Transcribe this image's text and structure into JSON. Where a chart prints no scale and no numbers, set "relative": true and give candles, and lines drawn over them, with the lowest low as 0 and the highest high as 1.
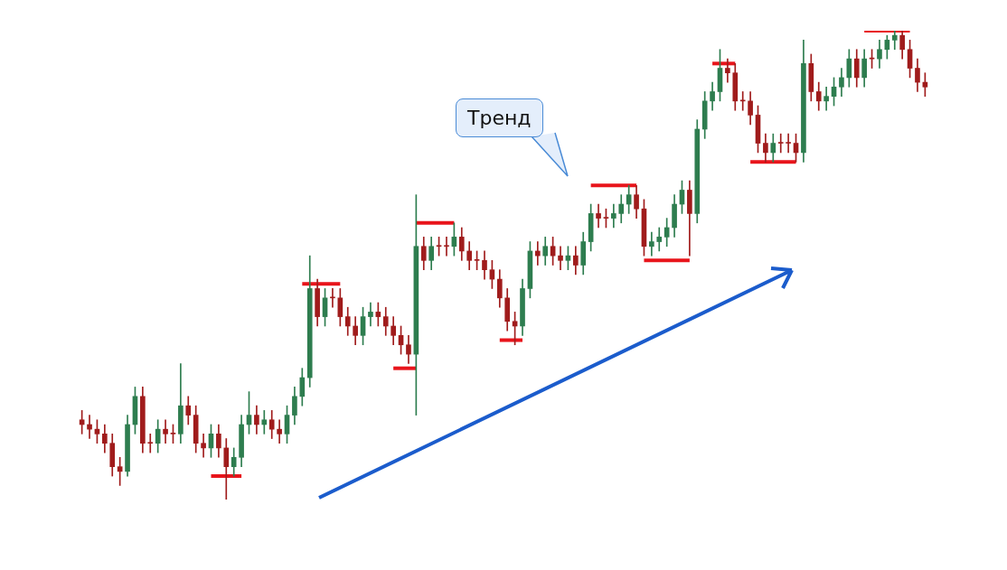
{
  "chart_data": {
    "type": "candlestick",
    "relative": true,
    "annotations": [
      "Тренд"
    ],
    "categories": [
      null,
      null,
      null,
      null,
      null,
      null,
      null,
      null,
      null,
      null,
      null,
      null,
      null,
      null,
      null,
      null,
      null,
      null,
      null,
      null,
      null,
      null,
      null,
      null,
      null,
      null,
      null,
      null,
      null,
      null,
      null,
      null,
      null,
      null,
      null,
      null,
      null,
      null,
      null,
      null,
      null,
      null,
      null,
      null,
      null,
      null,
      null,
      null,
      null,
      null,
      null,
      null,
      null,
      null,
      null,
      null,
      null,
      null,
      null,
      null,
      null,
      null,
      null,
      null,
      null,
      null,
      null,
      null,
      null,
      null,
      null,
      null,
      null,
      null,
      null,
      null,
      null,
      null,
      null,
      null,
      null,
      null,
      null,
      null,
      null,
      null,
      null,
      null,
      null,
      null,
      null,
      null,
      null,
      null,
      null,
      null,
      null,
      null,
      null,
      null,
      null,
      null,
      null,
      null,
      null,
      null,
      null,
      null,
      null,
      null,
      null,
      null
    ],
    "series": [
      {
        "ohlc": [
          [
            0.17,
            0.19,
            0.14,
            0.16
          ],
          [
            0.16,
            0.18,
            0.13,
            0.15
          ],
          [
            0.15,
            0.17,
            0.12,
            0.14
          ],
          [
            0.14,
            0.16,
            0.1,
            0.12
          ],
          [
            0.12,
            0.14,
            0.05,
            0.07
          ],
          [
            0.07,
            0.09,
            0.03,
            0.06
          ],
          [
            0.06,
            0.18,
            0.05,
            0.16
          ],
          [
            0.16,
            0.24,
            0.14,
            0.22
          ],
          [
            0.22,
            0.24,
            0.1,
            0.12
          ],
          [
            0.12,
            0.14,
            0.1,
            0.12
          ],
          [
            0.12,
            0.17,
            0.1,
            0.15
          ],
          [
            0.15,
            0.17,
            0.12,
            0.14
          ],
          [
            0.14,
            0.16,
            0.12,
            0.14
          ],
          [
            0.14,
            0.29,
            0.12,
            0.2
          ],
          [
            0.2,
            0.22,
            0.16,
            0.18
          ],
          [
            0.18,
            0.2,
            0.1,
            0.12
          ],
          [
            0.12,
            0.14,
            0.09,
            0.11
          ],
          [
            0.11,
            0.16,
            0.09,
            0.14
          ],
          [
            0.14,
            0.16,
            0.09,
            0.11
          ],
          [
            0.11,
            0.13,
            0,
            0.07
          ],
          [
            0.07,
            0.11,
            0.05,
            0.09
          ],
          [
            0.09,
            0.18,
            0.07,
            0.16
          ],
          [
            0.16,
            0.23,
            0.14,
            0.18
          ],
          [
            0.18,
            0.2,
            0.14,
            0.16
          ],
          [
            0.16,
            0.19,
            0.14,
            0.17
          ],
          [
            0.17,
            0.19,
            0.13,
            0.15
          ],
          [
            0.15,
            0.17,
            0.12,
            0.14
          ],
          [
            0.14,
            0.2,
            0.12,
            0.18
          ],
          [
            0.18,
            0.24,
            0.16,
            0.22
          ],
          [
            0.22,
            0.28,
            0.2,
            0.26
          ],
          [
            0.26,
            0.52,
            0.24,
            0.45
          ],
          [
            0.45,
            0.47,
            0.37,
            0.39
          ],
          [
            0.39,
            0.45,
            0.37,
            0.43
          ],
          [
            0.43,
            0.45,
            0.41,
            0.43
          ],
          [
            0.43,
            0.45,
            0.37,
            0.39
          ],
          [
            0.39,
            0.41,
            0.35,
            0.37
          ],
          [
            0.37,
            0.39,
            0.33,
            0.35
          ],
          [
            0.35,
            0.41,
            0.33,
            0.39
          ],
          [
            0.39,
            0.42,
            0.37,
            0.4
          ],
          [
            0.4,
            0.42,
            0.37,
            0.39
          ],
          [
            0.39,
            0.41,
            0.35,
            0.37
          ],
          [
            0.37,
            0.39,
            0.33,
            0.35
          ],
          [
            0.35,
            0.37,
            0.31,
            0.33
          ],
          [
            0.33,
            0.35,
            0.29,
            0.31
          ],
          [
            0.31,
            0.65,
            0.18,
            0.54
          ],
          [
            0.54,
            0.56,
            0.49,
            0.51
          ],
          [
            0.51,
            0.56,
            0.49,
            0.54
          ],
          [
            0.54,
            0.56,
            0.52,
            0.54
          ],
          [
            0.54,
            0.56,
            0.52,
            0.54
          ],
          [
            0.54,
            0.59,
            0.52,
            0.56
          ],
          [
            0.56,
            0.58,
            0.51,
            0.53
          ],
          [
            0.53,
            0.55,
            0.49,
            0.51
          ],
          [
            0.51,
            0.53,
            0.49,
            0.51
          ],
          [
            0.51,
            0.53,
            0.47,
            0.49
          ],
          [
            0.49,
            0.51,
            0.45,
            0.47
          ],
          [
            0.47,
            0.49,
            0.41,
            0.43
          ],
          [
            0.43,
            0.45,
            0.36,
            0.38
          ],
          [
            0.38,
            0.4,
            0.33,
            0.37
          ],
          [
            0.37,
            0.47,
            0.35,
            0.45
          ],
          [
            0.45,
            0.55,
            0.43,
            0.53
          ],
          [
            0.53,
            0.55,
            0.5,
            0.52
          ],
          [
            0.52,
            0.56,
            0.5,
            0.54
          ],
          [
            0.54,
            0.56,
            0.5,
            0.52
          ],
          [
            0.52,
            0.54,
            0.49,
            0.51
          ],
          [
            0.51,
            0.54,
            0.49,
            0.52
          ],
          [
            0.52,
            0.54,
            0.48,
            0.5
          ],
          [
            0.5,
            0.57,
            0.48,
            0.55
          ],
          [
            0.55,
            0.63,
            0.53,
            0.61
          ],
          [
            0.61,
            0.63,
            0.58,
            0.6
          ],
          [
            0.6,
            0.62,
            0.58,
            0.6
          ],
          [
            0.6,
            0.63,
            0.58,
            0.61
          ],
          [
            0.61,
            0.65,
            0.59,
            0.63
          ],
          [
            0.63,
            0.67,
            0.61,
            0.65
          ],
          [
            0.65,
            0.67,
            0.6,
            0.62
          ],
          [
            0.62,
            0.64,
            0.52,
            0.54
          ],
          [
            0.54,
            0.57,
            0.52,
            0.55
          ],
          [
            0.55,
            0.58,
            0.53,
            0.56
          ],
          [
            0.56,
            0.6,
            0.54,
            0.58
          ],
          [
            0.58,
            0.65,
            0.56,
            0.63
          ],
          [
            0.63,
            0.68,
            0.61,
            0.66
          ],
          [
            0.66,
            0.68,
            0.52,
            0.61
          ],
          [
            0.61,
            0.81,
            0.59,
            0.79
          ],
          [
            0.79,
            0.87,
            0.77,
            0.85
          ],
          [
            0.85,
            0.89,
            0.83,
            0.87
          ],
          [
            0.87,
            0.96,
            0.85,
            0.92
          ],
          [
            0.92,
            0.94,
            0.89,
            0.91
          ],
          [
            0.91,
            0.93,
            0.83,
            0.85
          ],
          [
            0.85,
            0.87,
            0.83,
            0.85
          ],
          [
            0.85,
            0.87,
            0.8,
            0.82
          ],
          [
            0.82,
            0.84,
            0.74,
            0.76
          ],
          [
            0.76,
            0.78,
            0.72,
            0.74
          ],
          [
            0.74,
            0.78,
            0.72,
            0.76
          ],
          [
            0.76,
            0.78,
            0.74,
            0.76
          ],
          [
            0.76,
            0.78,
            0.74,
            0.76
          ],
          [
            0.76,
            0.78,
            0.72,
            0.74
          ],
          [
            0.74,
            0.98,
            0.72,
            0.93
          ],
          [
            0.93,
            0.95,
            0.85,
            0.87
          ],
          [
            0.87,
            0.89,
            0.83,
            0.85
          ],
          [
            0.85,
            0.88,
            0.83,
            0.86
          ],
          [
            0.86,
            0.9,
            0.84,
            0.88
          ],
          [
            0.88,
            0.92,
            0.86,
            0.9
          ],
          [
            0.9,
            0.96,
            0.88,
            0.94
          ],
          [
            0.94,
            0.96,
            0.88,
            0.9
          ],
          [
            0.9,
            0.96,
            0.88,
            0.94
          ],
          [
            0.94,
            0.96,
            0.92,
            0.94
          ],
          [
            0.94,
            0.98,
            0.92,
            0.96
          ],
          [
            0.96,
            0.99,
            0.94,
            0.98
          ],
          [
            0.98,
            1,
            0.96,
            0.99
          ],
          [
            0.99,
            1,
            0.94,
            0.96
          ],
          [
            0.96,
            0.98,
            0.9,
            0.92
          ],
          [
            0.92,
            0.94,
            0.87,
            0.89
          ],
          [
            0.89,
            0.91,
            0.86,
            0.88
          ]
        ],
        "colors": [
          "#a01c1c",
          "#a01c1c",
          "#a01c1c",
          "#a01c1c",
          "#a01c1c",
          "#a01c1c",
          "#2e7d4f",
          "#2e7d4f",
          "#a01c1c",
          "#a01c1c",
          "#2e7d4f",
          "#a01c1c",
          "#a01c1c",
          "#2e7d4f",
          "#a01c1c",
          "#a01c1c",
          "#a01c1c",
          "#2e7d4f",
          "#a01c1c",
          "#a01c1c",
          "#2e7d4f",
          "#2e7d4f",
          "#2e7d4f",
          "#a01c1c",
          "#2e7d4f",
          "#a01c1c",
          "#a01c1c",
          "#2e7d4f",
          "#2e7d4f",
          "#2e7d4f",
          "#2e7d4f",
          "#a01c1c",
          "#2e7d4f",
          "#a01c1c",
          "#a01c1c",
          "#a01c1c",
          "#a01c1c",
          "#2e7d4f",
          "#2e7d4f",
          "#a01c1c",
          "#a01c1c",
          "#a01c1c",
          "#a01c1c",
          "#a01c1c",
          "#2e7d4f",
          "#a01c1c",
          "#2e7d4f",
          "#a01c1c",
          "#a01c1c",
          "#2e7d4f",
          "#a01c1c",
          "#a01c1c",
          "#a01c1c",
          "#a01c1c",
          "#a01c1c",
          "#a01c1c",
          "#a01c1c",
          "#a01c1c",
          "#2e7d4f",
          "#2e7d4f",
          "#a01c1c",
          "#2e7d4f",
          "#a01c1c",
          "#a01c1c",
          "#2e7d4f",
          "#a01c1c",
          "#2e7d4f",
          "#2e7d4f",
          "#a01c1c",
          "#a01c1c",
          "#2e7d4f",
          "#2e7d4f",
          "#2e7d4f",
          "#a01c1c",
          "#a01c1c",
          "#2e7d4f",
          "#2e7d4f",
          "#2e7d4f",
          "#2e7d4f",
          "#2e7d4f",
          "#a01c1c",
          "#2e7d4f",
          "#2e7d4f",
          "#2e7d4f",
          "#2e7d4f",
          "#a01c1c",
          "#a01c1c",
          "#a01c1c",
          "#a01c1c",
          "#a01c1c",
          "#a01c1c",
          "#2e7d4f",
          "#a01c1c",
          "#a01c1c",
          "#a01c1c",
          "#2e7d4f",
          "#a01c1c",
          "#a01c1c",
          "#2e7d4f",
          "#2e7d4f",
          "#2e7d4f",
          "#2e7d4f",
          "#a01c1c",
          "#2e7d4f",
          "#a01c1c",
          "#2e7d4f",
          "#2e7d4f",
          "#2e7d4f",
          "#a01c1c",
          "#a01c1c",
          "#a01c1c",
          "#a01c1c"
        ]
      },
      {
        "type": "line",
        "color": "#e8141b",
        "values": [
          null,
          null,
          null,
          null,
          null,
          null,
          null,
          null,
          null,
          null,
          null,
          null,
          null,
          null,
          null,
          null,
          null,
          0.05,
          0.05,
          0.05,
          0.05,
          0.05,
          null,
          null,
          null,
          null,
          null,
          null,
          null,
          null,
          null,
          null,
          null,
          null,
          null,
          null,
          null,
          null,
          null,
          null,
          null,
          null,
          null,
          null,
          null,
          null,
          null,
          null,
          null,
          null,
          null,
          null,
          null,
          null,
          null,
          null,
          null,
          null,
          null,
          null,
          null,
          null,
          null,
          null,
          null,
          null,
          null,
          null,
          null,
          null,
          null,
          null,
          null,
          null,
          null,
          null,
          null,
          null,
          null,
          null,
          null,
          null,
          null,
          null,
          null,
          null,
          null,
          null,
          null,
          null,
          null,
          null,
          null,
          null,
          null,
          null,
          null,
          null,
          null,
          null,
          null,
          null,
          null,
          null,
          null,
          null,
          null,
          null,
          null,
          null,
          null,
          null
        ]
      },
      {
        "type": "line",
        "color": "#e8141b",
        "values": [
          null,
          null,
          null,
          null,
          null,
          null,
          null,
          null,
          null,
          null,
          null,
          null,
          null,
          null,
          null,
          null,
          null,
          null,
          null,
          null,
          null,
          null,
          null,
          null,
          null,
          null,
          null,
          null,
          null,
          0.46,
          0.46,
          0.46,
          0.46,
          0.46,
          0.46,
          null,
          null,
          null,
          null,
          null,
          null,
          null,
          null,
          null,
          null,
          null,
          null,
          null,
          null,
          null,
          null,
          null,
          null,
          null,
          null,
          null,
          null,
          null,
          null,
          null,
          null,
          null,
          null,
          null,
          null,
          null,
          null,
          null,
          null,
          null,
          null,
          null,
          null,
          null,
          null,
          null,
          null,
          null,
          null,
          null,
          null,
          null,
          null,
          null,
          null,
          null,
          null,
          null,
          null,
          null,
          null,
          null,
          null,
          null,
          null,
          null,
          null,
          null,
          null,
          null,
          null,
          null,
          null,
          null,
          null,
          null,
          null,
          null,
          null,
          null,
          null,
          null
        ]
      },
      {
        "type": "line",
        "color": "#e8141b",
        "values": [
          null,
          null,
          null,
          null,
          null,
          null,
          null,
          null,
          null,
          null,
          null,
          null,
          null,
          null,
          null,
          null,
          null,
          null,
          null,
          null,
          null,
          null,
          null,
          null,
          null,
          null,
          null,
          null,
          null,
          null,
          null,
          null,
          null,
          null,
          null,
          null,
          null,
          null,
          null,
          null,
          null,
          0.28,
          0.28,
          0.28,
          0.28,
          null,
          null,
          null,
          null,
          null,
          null,
          null,
          null,
          null,
          null,
          null,
          null,
          null,
          null,
          null,
          null,
          null,
          null,
          null,
          null,
          null,
          null,
          null,
          null,
          null,
          null,
          null,
          null,
          null,
          null,
          null,
          null,
          null,
          null,
          null,
          null,
          null,
          null,
          null,
          null,
          null,
          null,
          null,
          null,
          null,
          null,
          null,
          null,
          null,
          null,
          null,
          null,
          null,
          null,
          null,
          null,
          null,
          null,
          null,
          null,
          null,
          null,
          null,
          null,
          null,
          null,
          null
        ]
      },
      {
        "type": "line",
        "color": "#e8141b",
        "values": [
          null,
          null,
          null,
          null,
          null,
          null,
          null,
          null,
          null,
          null,
          null,
          null,
          null,
          null,
          null,
          null,
          null,
          null,
          null,
          null,
          null,
          null,
          null,
          null,
          null,
          null,
          null,
          null,
          null,
          null,
          null,
          null,
          null,
          null,
          null,
          null,
          null,
          null,
          null,
          null,
          null,
          null,
          null,
          null,
          0.59,
          0.59,
          0.59,
          0.59,
          0.59,
          0.59,
          null,
          null,
          null,
          null,
          null,
          null,
          null,
          null,
          null,
          null,
          null,
          null,
          null,
          null,
          null,
          null,
          null,
          null,
          null,
          null,
          null,
          null,
          null,
          null,
          null,
          null,
          null,
          null,
          null,
          null,
          null,
          null,
          null,
          null,
          null,
          null,
          null,
          null,
          null,
          null,
          null,
          null,
          null,
          null,
          null,
          null,
          null,
          null,
          null,
          null,
          null,
          null,
          null,
          null,
          null,
          null,
          null,
          null,
          null,
          null,
          null,
          null
        ]
      },
      {
        "type": "line",
        "color": "#e8141b",
        "values": [
          null,
          null,
          null,
          null,
          null,
          null,
          null,
          null,
          null,
          null,
          null,
          null,
          null,
          null,
          null,
          null,
          null,
          null,
          null,
          null,
          null,
          null,
          null,
          null,
          null,
          null,
          null,
          null,
          null,
          null,
          null,
          null,
          null,
          null,
          null,
          null,
          null,
          null,
          null,
          null,
          null,
          null,
          null,
          null,
          null,
          null,
          null,
          null,
          null,
          null,
          null,
          null,
          null,
          null,
          null,
          0.34,
          0.34,
          0.34,
          0.34,
          null,
          null,
          null,
          null,
          null,
          null,
          null,
          null,
          null,
          null,
          null,
          null,
          null,
          null,
          null,
          null,
          null,
          null,
          null,
          null,
          null,
          null,
          null,
          null,
          null,
          null,
          null,
          null,
          null,
          null,
          null,
          null,
          null,
          null,
          null,
          null,
          null,
          null,
          null,
          null,
          null,
          null,
          null,
          null,
          null,
          null,
          null,
          null,
          null,
          null,
          null,
          null,
          null
        ]
      },
      {
        "type": "line",
        "color": "#e8141b",
        "values": [
          null,
          null,
          null,
          null,
          null,
          null,
          null,
          null,
          null,
          null,
          null,
          null,
          null,
          null,
          null,
          null,
          null,
          null,
          null,
          null,
          null,
          null,
          null,
          null,
          null,
          null,
          null,
          null,
          null,
          null,
          null,
          null,
          null,
          null,
          null,
          null,
          null,
          null,
          null,
          null,
          null,
          null,
          null,
          null,
          null,
          null,
          null,
          null,
          null,
          null,
          null,
          null,
          null,
          null,
          null,
          null,
          null,
          null,
          null,
          null,
          null,
          null,
          null,
          null,
          null,
          null,
          null,
          0.67,
          0.67,
          0.67,
          0.67,
          0.67,
          0.67,
          0.67,
          null,
          null,
          null,
          null,
          null,
          null,
          null,
          null,
          null,
          null,
          null,
          null,
          null,
          null,
          null,
          null,
          null,
          null,
          null,
          null,
          null,
          null,
          null,
          null,
          null,
          null,
          null,
          null,
          null,
          null,
          null,
          null,
          null,
          null,
          null,
          null,
          null,
          null
        ]
      },
      {
        "type": "line",
        "color": "#e8141b",
        "values": [
          null,
          null,
          null,
          null,
          null,
          null,
          null,
          null,
          null,
          null,
          null,
          null,
          null,
          null,
          null,
          null,
          null,
          null,
          null,
          null,
          null,
          null,
          null,
          null,
          null,
          null,
          null,
          null,
          null,
          null,
          null,
          null,
          null,
          null,
          null,
          null,
          null,
          null,
          null,
          null,
          null,
          null,
          null,
          null,
          null,
          null,
          null,
          null,
          null,
          null,
          null,
          null,
          null,
          null,
          null,
          null,
          null,
          null,
          null,
          null,
          null,
          null,
          null,
          null,
          null,
          null,
          null,
          null,
          null,
          null,
          null,
          null,
          null,
          null,
          0.51,
          0.51,
          0.51,
          0.51,
          0.51,
          0.51,
          0.51,
          null,
          null,
          null,
          null,
          null,
          null,
          null,
          null,
          null,
          null,
          null,
          null,
          null,
          null,
          null,
          null,
          null,
          null,
          null,
          null,
          null,
          null,
          null,
          null,
          null,
          null,
          null,
          null,
          null,
          null,
          null
        ]
      },
      {
        "type": "line",
        "color": "#e8141b",
        "values": [
          null,
          null,
          null,
          null,
          null,
          null,
          null,
          null,
          null,
          null,
          null,
          null,
          null,
          null,
          null,
          null,
          null,
          null,
          null,
          null,
          null,
          null,
          null,
          null,
          null,
          null,
          null,
          null,
          null,
          null,
          null,
          null,
          null,
          null,
          null,
          null,
          null,
          null,
          null,
          null,
          null,
          null,
          null,
          null,
          null,
          null,
          null,
          null,
          null,
          null,
          null,
          null,
          null,
          null,
          null,
          null,
          null,
          null,
          null,
          null,
          null,
          null,
          null,
          null,
          null,
          null,
          null,
          null,
          null,
          null,
          null,
          null,
          null,
          null,
          null,
          null,
          null,
          null,
          null,
          null,
          null,
          null,
          null,
          0.93,
          0.93,
          0.93,
          0.93,
          null,
          null,
          null,
          null,
          null,
          null,
          null,
          null,
          null,
          null,
          null,
          null,
          null,
          null,
          null,
          null,
          null,
          null,
          null,
          null,
          null,
          null,
          null,
          null,
          null
        ]
      },
      {
        "type": "line",
        "color": "#e8141b",
        "values": [
          null,
          null,
          null,
          null,
          null,
          null,
          null,
          null,
          null,
          null,
          null,
          null,
          null,
          null,
          null,
          null,
          null,
          null,
          null,
          null,
          null,
          null,
          null,
          null,
          null,
          null,
          null,
          null,
          null,
          null,
          null,
          null,
          null,
          null,
          null,
          null,
          null,
          null,
          null,
          null,
          null,
          null,
          null,
          null,
          null,
          null,
          null,
          null,
          null,
          null,
          null,
          null,
          null,
          null,
          null,
          null,
          null,
          null,
          null,
          null,
          null,
          null,
          null,
          null,
          null,
          null,
          null,
          null,
          null,
          null,
          null,
          null,
          null,
          null,
          null,
          null,
          null,
          null,
          null,
          null,
          null,
          null,
          null,
          null,
          null,
          null,
          null,
          null,
          0.72,
          0.72,
          0.72,
          0.72,
          0.72,
          0.72,
          0.72,
          null,
          null,
          null,
          null,
          null,
          null,
          null,
          null,
          null,
          null,
          null,
          null,
          null,
          null,
          null,
          null,
          null
        ]
      },
      {
        "type": "line",
        "color": "#e8141b",
        "values": [
          null,
          null,
          null,
          null,
          null,
          null,
          null,
          null,
          null,
          null,
          null,
          null,
          null,
          null,
          null,
          null,
          null,
          null,
          null,
          null,
          null,
          null,
          null,
          null,
          null,
          null,
          null,
          null,
          null,
          null,
          null,
          null,
          null,
          null,
          null,
          null,
          null,
          null,
          null,
          null,
          null,
          null,
          null,
          null,
          null,
          null,
          null,
          null,
          null,
          null,
          null,
          null,
          null,
          null,
          null,
          null,
          null,
          null,
          null,
          null,
          null,
          null,
          null,
          null,
          null,
          null,
          null,
          null,
          null,
          null,
          null,
          null,
          null,
          null,
          null,
          null,
          null,
          null,
          null,
          null,
          null,
          null,
          null,
          null,
          null,
          null,
          null,
          null,
          null,
          null,
          null,
          null,
          null,
          null,
          null,
          null,
          null,
          null,
          null,
          null,
          null,
          null,
          null,
          1,
          1,
          1,
          1,
          1,
          1,
          1,
          null,
          null
        ]
      }
    ]
  }
}
